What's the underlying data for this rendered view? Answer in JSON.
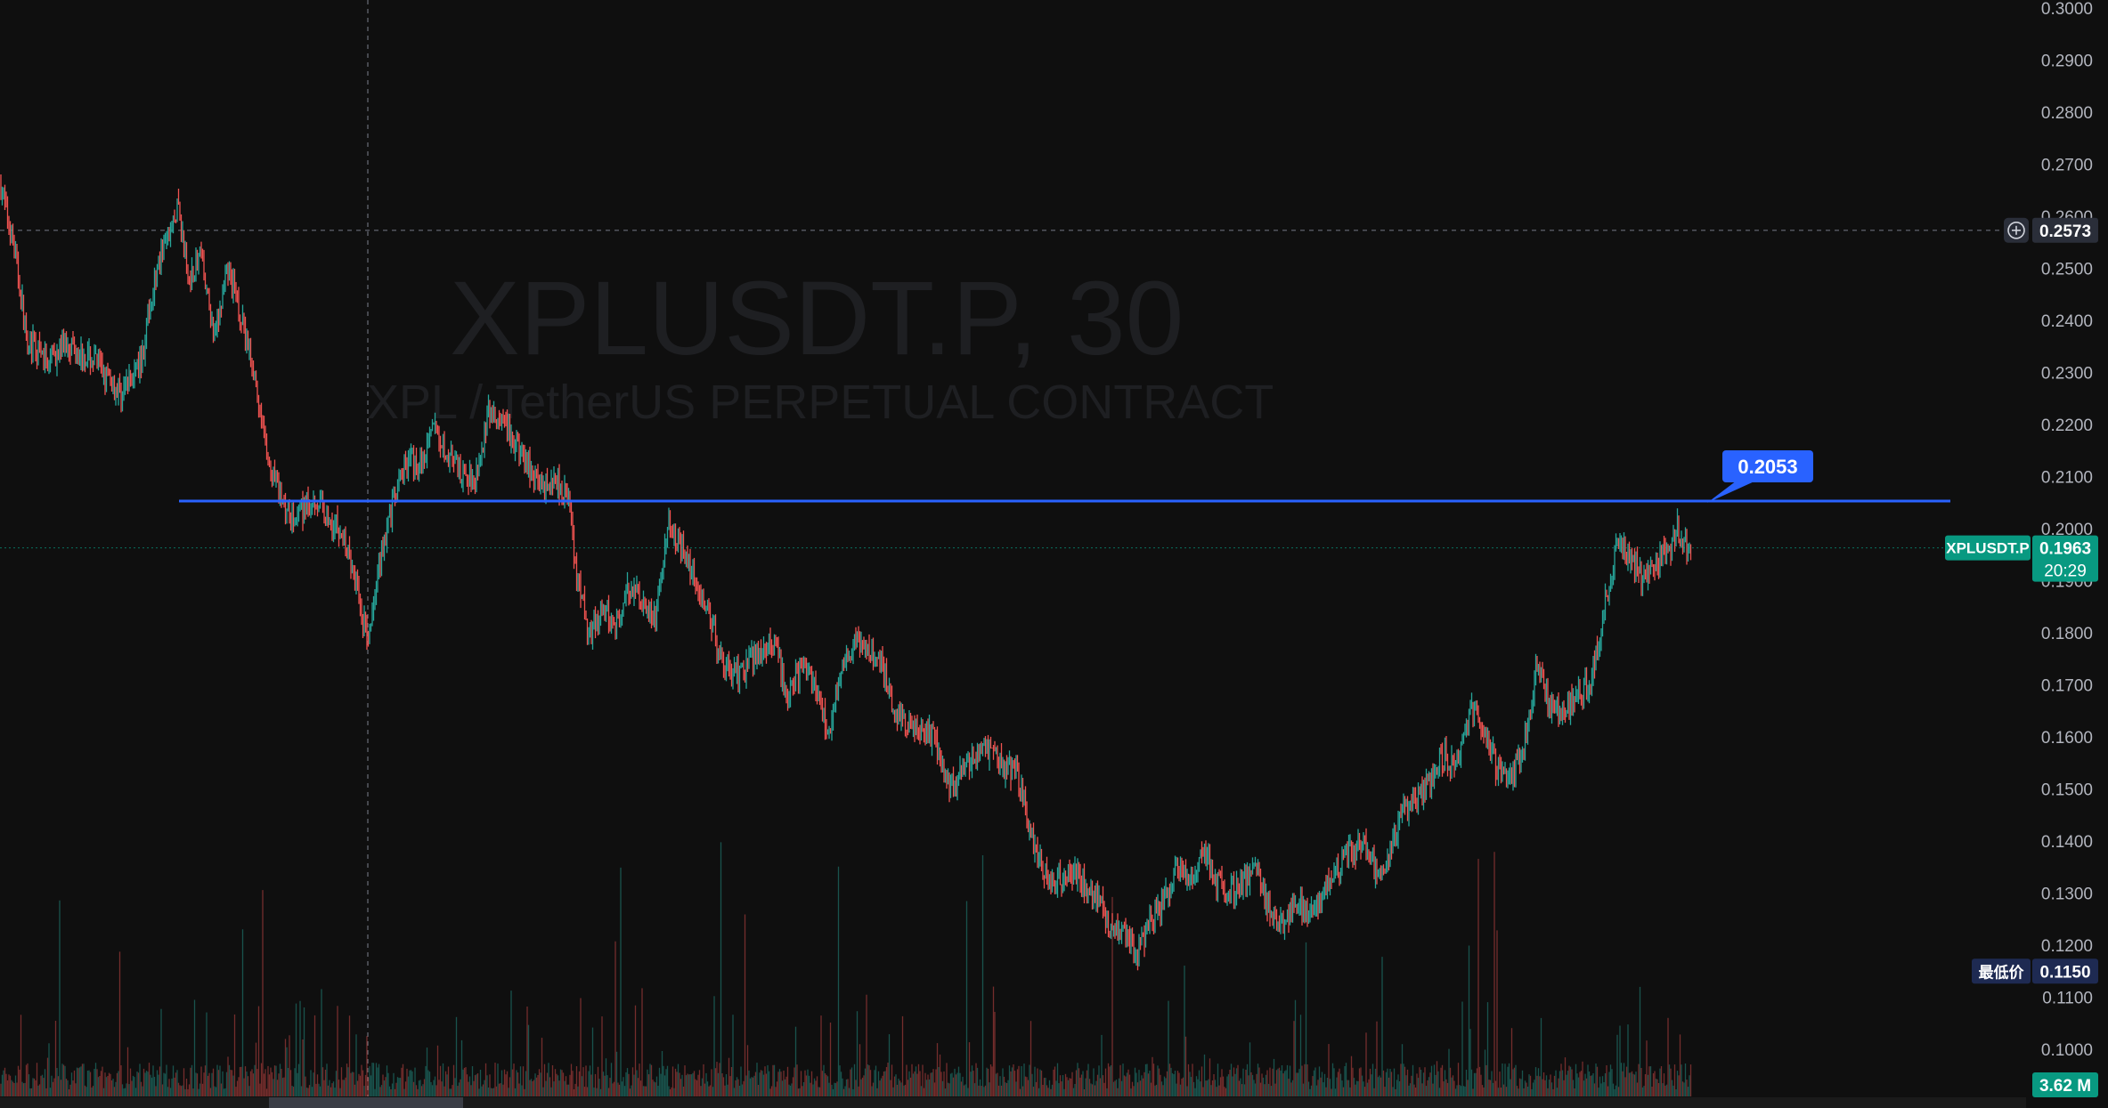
{
  "watermark": {
    "symbol": "XPLUSDT.P, 30",
    "description": "XPL / TetherUS PERPETUAL CONTRACT"
  },
  "colors": {
    "background": "#0f0f0f",
    "up": "#26a69a",
    "down": "#ef5350",
    "horizontal_line": "#2962ff",
    "current_price_tag": "#089981",
    "low_price_tag": "#1e2a52",
    "crosshair_tag": "#2a2e39"
  },
  "chart_data": {
    "type": "candlestick",
    "title": "",
    "interval": "30",
    "ylim": [
      0.095,
      0.3
    ],
    "y_ticks": [
      "0.3000",
      "0.2900",
      "0.2800",
      "0.2700",
      "0.2600",
      "0.2500",
      "0.2400",
      "0.2300",
      "0.2200",
      "0.2100",
      "0.2000",
      "0.1900",
      "0.1800",
      "0.1700",
      "0.1600",
      "0.1500",
      "0.1400",
      "0.1300",
      "0.1200",
      "0.1100",
      "0.1000"
    ],
    "close_path": [
      [
        0,
        0.266
      ],
      [
        10,
        0.254
      ],
      [
        20,
        0.236
      ],
      [
        35,
        0.232
      ],
      [
        50,
        0.236
      ],
      [
        70,
        0.232
      ],
      [
        90,
        0.226
      ],
      [
        105,
        0.232
      ],
      [
        115,
        0.248
      ],
      [
        125,
        0.256
      ],
      [
        133,
        0.262
      ],
      [
        140,
        0.248
      ],
      [
        150,
        0.252
      ],
      [
        160,
        0.236
      ],
      [
        170,
        0.25
      ],
      [
        180,
        0.24
      ],
      [
        190,
        0.23
      ],
      [
        200,
        0.212
      ],
      [
        210,
        0.206
      ],
      [
        220,
        0.202
      ],
      [
        235,
        0.206
      ],
      [
        245,
        0.202
      ],
      [
        255,
        0.2
      ],
      [
        265,
        0.19
      ],
      [
        275,
        0.178
      ],
      [
        285,
        0.196
      ],
      [
        295,
        0.206
      ],
      [
        305,
        0.214
      ],
      [
        315,
        0.212
      ],
      [
        325,
        0.22
      ],
      [
        335,
        0.214
      ],
      [
        345,
        0.21
      ],
      [
        355,
        0.21
      ],
      [
        365,
        0.222
      ],
      [
        375,
        0.22
      ],
      [
        385,
        0.216
      ],
      [
        395,
        0.212
      ],
      [
        405,
        0.208
      ],
      [
        415,
        0.21
      ],
      [
        425,
        0.206
      ],
      [
        430,
        0.192
      ],
      [
        440,
        0.18
      ],
      [
        450,
        0.184
      ],
      [
        460,
        0.182
      ],
      [
        470,
        0.188
      ],
      [
        480,
        0.186
      ],
      [
        490,
        0.182
      ],
      [
        500,
        0.202
      ],
      [
        510,
        0.196
      ],
      [
        520,
        0.19
      ],
      [
        530,
        0.184
      ],
      [
        540,
        0.174
      ],
      [
        550,
        0.172
      ],
      [
        560,
        0.174
      ],
      [
        570,
        0.178
      ],
      [
        580,
        0.176
      ],
      [
        590,
        0.168
      ],
      [
        600,
        0.174
      ],
      [
        610,
        0.17
      ],
      [
        620,
        0.16
      ],
      [
        630,
        0.174
      ],
      [
        640,
        0.178
      ],
      [
        650,
        0.176
      ],
      [
        660,
        0.174
      ],
      [
        670,
        0.164
      ],
      [
        680,
        0.162
      ],
      [
        690,
        0.16
      ],
      [
        700,
        0.16
      ],
      [
        710,
        0.15
      ],
      [
        720,
        0.154
      ],
      [
        730,
        0.156
      ],
      [
        740,
        0.158
      ],
      [
        750,
        0.154
      ],
      [
        760,
        0.154
      ],
      [
        770,
        0.142
      ],
      [
        780,
        0.134
      ],
      [
        790,
        0.132
      ],
      [
        800,
        0.134
      ],
      [
        810,
        0.132
      ],
      [
        820,
        0.13
      ],
      [
        830,
        0.124
      ],
      [
        840,
        0.122
      ],
      [
        850,
        0.118
      ],
      [
        860,
        0.124
      ],
      [
        870,
        0.128
      ],
      [
        880,
        0.134
      ],
      [
        890,
        0.132
      ],
      [
        900,
        0.138
      ],
      [
        910,
        0.132
      ],
      [
        920,
        0.13
      ],
      [
        930,
        0.132
      ],
      [
        940,
        0.134
      ],
      [
        950,
        0.126
      ],
      [
        960,
        0.124
      ],
      [
        970,
        0.128
      ],
      [
        980,
        0.126
      ],
      [
        990,
        0.13
      ],
      [
        1000,
        0.134
      ],
      [
        1010,
        0.138
      ],
      [
        1020,
        0.14
      ],
      [
        1030,
        0.134
      ],
      [
        1040,
        0.138
      ],
      [
        1050,
        0.146
      ],
      [
        1060,
        0.148
      ],
      [
        1070,
        0.152
      ],
      [
        1080,
        0.156
      ],
      [
        1090,
        0.154
      ],
      [
        1100,
        0.166
      ],
      [
        1110,
        0.162
      ],
      [
        1120,
        0.154
      ],
      [
        1130,
        0.152
      ],
      [
        1140,
        0.158
      ],
      [
        1150,
        0.174
      ],
      [
        1160,
        0.166
      ],
      [
        1170,
        0.164
      ],
      [
        1180,
        0.168
      ],
      [
        1190,
        0.17
      ],
      [
        1200,
        0.184
      ],
      [
        1210,
        0.198
      ],
      [
        1220,
        0.194
      ],
      [
        1230,
        0.19
      ],
      [
        1240,
        0.194
      ],
      [
        1250,
        0.196
      ],
      [
        1255,
        0.2
      ],
      [
        1260,
        0.196
      ],
      [
        1265,
        0.196
      ]
    ],
    "horizontal_line": {
      "price": 0.2053,
      "label": "0.2053"
    },
    "current_price": {
      "symbol": "XPLUSDT.P",
      "value": "0.1963",
      "countdown": "20:29",
      "price": 0.1963
    },
    "crosshair": {
      "price_label": "0.2573",
      "price": 0.2573
    },
    "low_price": {
      "label": "最低价",
      "value": "0.1150",
      "price": 0.115
    },
    "volume": {
      "last_label": "3.62 M"
    }
  }
}
